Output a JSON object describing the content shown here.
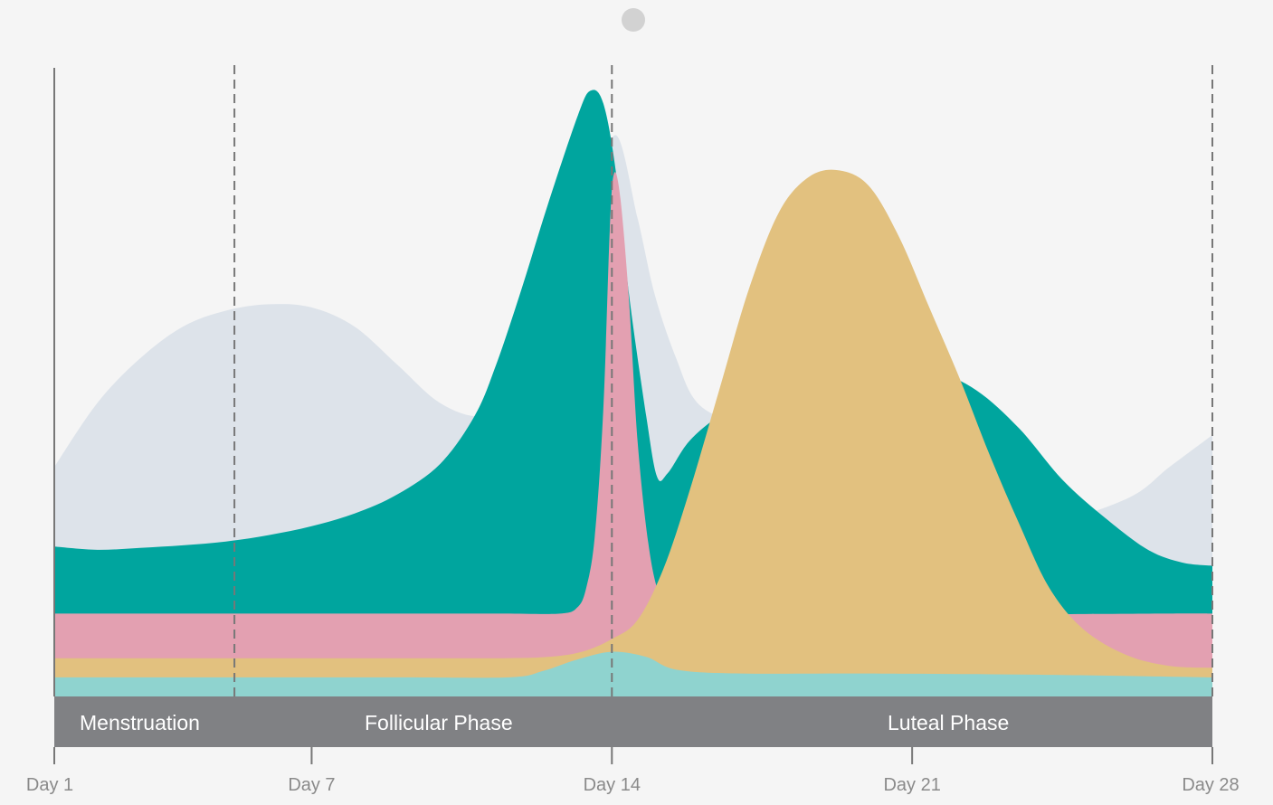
{
  "chart_data": {
    "type": "area",
    "title": "",
    "xlabel": "",
    "ylabel": "",
    "x_range": [
      1,
      28
    ],
    "x_ticks": [
      {
        "day": 1,
        "label": "Day 1"
      },
      {
        "day": 7,
        "label": "Day 7"
      },
      {
        "day": 14,
        "label": "Day 14"
      },
      {
        "day": 21,
        "label": "Day 21"
      },
      {
        "day": 28,
        "label": "Day 28"
      }
    ],
    "phase_boundaries": [
      5.2,
      14,
      28
    ],
    "phases": [
      {
        "name": "Menstruation",
        "start": 1,
        "end": 5.2
      },
      {
        "name": "Follicular Phase",
        "start": 5.2,
        "end": 14
      },
      {
        "name": "Luteal Phase",
        "start": 14,
        "end": 28
      }
    ],
    "y_range": [
      0,
      100
    ],
    "series": [
      {
        "color": "#dde3ea",
        "points": [
          [
            1,
            36
          ],
          [
            2,
            46
          ],
          [
            3,
            53
          ],
          [
            4,
            58
          ],
          [
            5,
            60.5
          ],
          [
            6,
            61.5
          ],
          [
            7,
            61
          ],
          [
            8,
            58
          ],
          [
            9,
            52
          ],
          [
            10,
            46
          ],
          [
            11,
            44
          ],
          [
            12,
            48
          ],
          [
            13,
            60
          ],
          [
            13.6,
            78
          ],
          [
            14.1,
            88
          ],
          [
            14.6,
            75
          ],
          [
            15,
            63
          ],
          [
            15.5,
            53
          ],
          [
            16,
            46
          ],
          [
            17,
            42
          ],
          [
            18,
            37
          ],
          [
            20,
            32
          ],
          [
            22,
            28
          ],
          [
            24,
            27
          ],
          [
            26,
            31
          ],
          [
            27,
            36
          ],
          [
            28,
            41
          ]
        ]
      },
      {
        "color": "#00a59e",
        "points": [
          [
            1,
            23.5
          ],
          [
            2,
            23
          ],
          [
            3,
            23.3
          ],
          [
            4,
            23.7
          ],
          [
            5,
            24.3
          ],
          [
            6,
            25.3
          ],
          [
            7,
            26.7
          ],
          [
            8,
            28.7
          ],
          [
            9,
            31.7
          ],
          [
            10,
            36.5
          ],
          [
            10.8,
            44
          ],
          [
            11.3,
            52
          ],
          [
            11.9,
            64
          ],
          [
            12.5,
            77
          ],
          [
            13.2,
            91
          ],
          [
            13.5,
            95
          ],
          [
            13.8,
            93
          ],
          [
            14.1,
            82
          ],
          [
            14.4,
            63
          ],
          [
            14.8,
            44
          ],
          [
            15.05,
            34.5
          ],
          [
            15.3,
            35
          ],
          [
            15.8,
            40
          ],
          [
            16.5,
            44
          ],
          [
            17.5,
            48
          ],
          [
            18.5,
            49
          ],
          [
            19.5,
            50
          ],
          [
            20.5,
            51
          ],
          [
            21.5,
            51
          ],
          [
            22.5,
            48
          ],
          [
            23.5,
            42
          ],
          [
            24.5,
            34
          ],
          [
            25.5,
            28
          ],
          [
            26.5,
            23
          ],
          [
            27.3,
            21
          ],
          [
            28,
            20.5
          ]
        ]
      },
      {
        "color": "#e3a0b1",
        "points": [
          [
            1,
            13
          ],
          [
            4,
            13
          ],
          [
            8,
            13
          ],
          [
            10,
            13
          ],
          [
            11.5,
            13
          ],
          [
            12.8,
            13
          ],
          [
            13.2,
            14
          ],
          [
            13.4,
            17
          ],
          [
            13.6,
            25
          ],
          [
            13.8,
            45
          ],
          [
            13.95,
            73
          ],
          [
            14.05,
            82
          ],
          [
            14.2,
            78
          ],
          [
            14.4,
            62
          ],
          [
            14.6,
            40
          ],
          [
            14.85,
            24
          ],
          [
            15.1,
            16
          ],
          [
            15.4,
            13.5
          ],
          [
            15.8,
            12.8
          ],
          [
            17,
            12.7
          ],
          [
            20,
            12.8
          ],
          [
            24,
            12.9
          ],
          [
            27,
            13
          ],
          [
            28,
            13
          ]
        ]
      },
      {
        "color": "#e2c17f",
        "points": [
          [
            1,
            6
          ],
          [
            5,
            6
          ],
          [
            10,
            6
          ],
          [
            11.5,
            6
          ],
          [
            12.5,
            6.2
          ],
          [
            13.3,
            7
          ],
          [
            14,
            9
          ],
          [
            14.6,
            12
          ],
          [
            15.2,
            20
          ],
          [
            15.8,
            32
          ],
          [
            16.5,
            48
          ],
          [
            17.2,
            64
          ],
          [
            17.9,
            76
          ],
          [
            18.6,
            81.5
          ],
          [
            19.3,
            82.5
          ],
          [
            20,
            80
          ],
          [
            20.7,
            72
          ],
          [
            21.4,
            61
          ],
          [
            22.1,
            50
          ],
          [
            22.8,
            38
          ],
          [
            23.5,
            27
          ],
          [
            24.2,
            17
          ],
          [
            25,
            10.5
          ],
          [
            26,
            6.5
          ],
          [
            27,
            4.8
          ],
          [
            28,
            4.5
          ]
        ]
      },
      {
        "color": "#8fd3cf",
        "points": [
          [
            1,
            3
          ],
          [
            5,
            3
          ],
          [
            9,
            3
          ],
          [
            11.6,
            3
          ],
          [
            12.4,
            4
          ],
          [
            13.2,
            5.8
          ],
          [
            14,
            7
          ],
          [
            14.8,
            6.2
          ],
          [
            15.5,
            4.2
          ],
          [
            17,
            3.6
          ],
          [
            20,
            3.6
          ],
          [
            24,
            3.4
          ],
          [
            28,
            3
          ]
        ]
      }
    ]
  }
}
